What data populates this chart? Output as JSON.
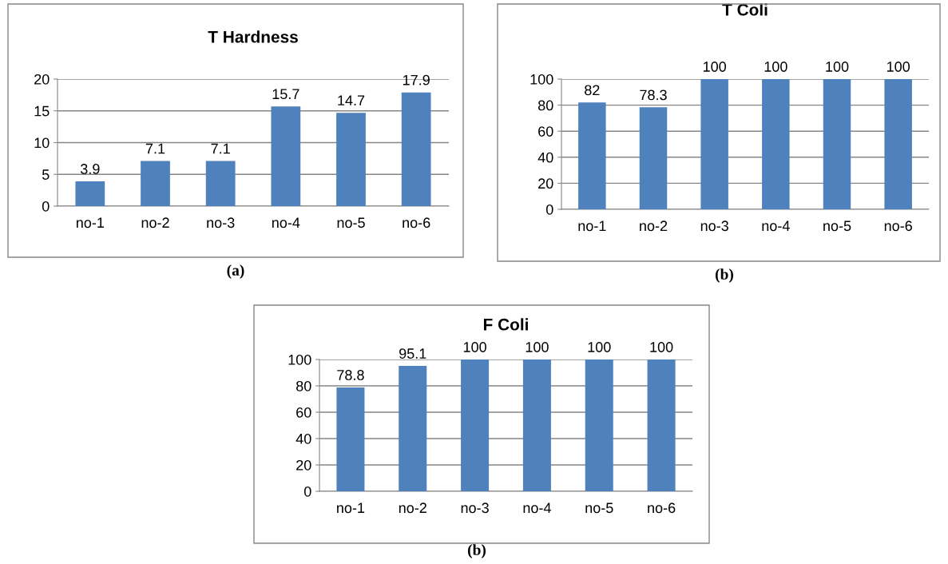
{
  "chart_data": [
    {
      "type": "bar",
      "title": "T Hardness",
      "categories": [
        "no-1",
        "no-2",
        "no-3",
        "no-4",
        "no-5",
        "no-6"
      ],
      "values": [
        3.9,
        7.1,
        7.1,
        15.7,
        14.7,
        17.9
      ],
      "color": "#4f81bd",
      "ylim": [
        0,
        20
      ],
      "yticks": [
        0,
        5,
        10,
        15,
        20
      ],
      "grid": "y",
      "data_labels": true,
      "annotations": [
        "(a)"
      ]
    },
    {
      "type": "bar",
      "title": "T Coli",
      "categories": [
        "no-1",
        "no-2",
        "no-3",
        "no-4",
        "no-5",
        "no-6"
      ],
      "values": [
        82,
        78.3,
        100,
        100,
        100,
        100
      ],
      "color": "#4f81bd",
      "ylim": [
        0,
        100
      ],
      "yticks": [
        0,
        20,
        40,
        60,
        80,
        100
      ],
      "grid": "y",
      "data_labels": true,
      "annotations": [
        "(b)"
      ]
    },
    {
      "type": "bar",
      "title": "F Coli",
      "categories": [
        "no-1",
        "no-2",
        "no-3",
        "no-4",
        "no-5",
        "no-6"
      ],
      "values": [
        78.8,
        95.1,
        100,
        100,
        100,
        100
      ],
      "color": "#4f81bd",
      "ylim": [
        0,
        100
      ],
      "yticks": [
        0,
        20,
        40,
        60,
        80,
        100
      ],
      "grid": "y",
      "data_labels": true,
      "annotations": [
        "(b)"
      ]
    }
  ]
}
